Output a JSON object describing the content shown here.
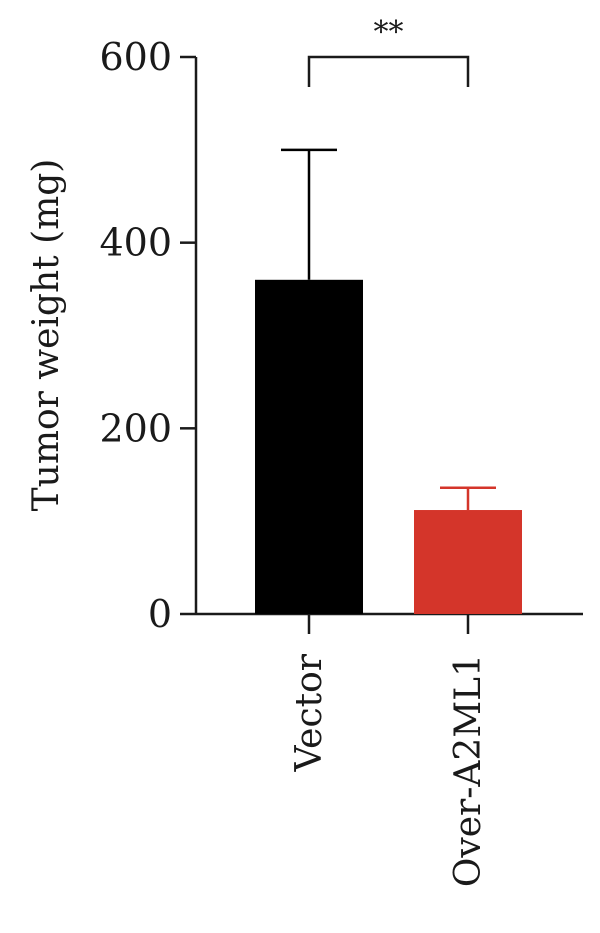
{
  "chart_data": {
    "type": "bar",
    "ylabel": "Tumor weight (mg)",
    "categories": [
      "Vector",
      "Over-A2ML1"
    ],
    "values": [
      360,
      112
    ],
    "error_upper": [
      500,
      136
    ],
    "colors": [
      "#000000",
      "#d4352a"
    ],
    "ylim": [
      0,
      600
    ],
    "yticks": [
      0,
      200,
      400,
      600
    ],
    "ytick_labels": [
      "0",
      "200",
      "400",
      "600"
    ],
    "significance": {
      "label": "**",
      "between": [
        0,
        1
      ]
    },
    "grid": false
  }
}
